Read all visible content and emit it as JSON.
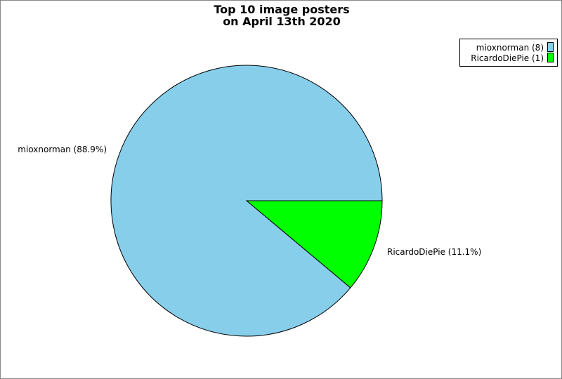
{
  "chart_data": {
    "type": "pie",
    "title": [
      "Top 10 image posters",
      "on April 13th 2020"
    ],
    "slices": [
      {
        "label": "mioxnorman",
        "value": 8,
        "percent": "88.9%",
        "color": "#87ceeb",
        "slice_label": "mioxnorman (88.9%)",
        "legend_label": "mioxnorman (8)"
      },
      {
        "label": "RicardoDiePie",
        "value": 1,
        "percent": "11.1%",
        "color": "#00ff00",
        "slice_label": "RicardoDiePie (11.1%)",
        "legend_label": "RicardoDiePie (1)"
      }
    ],
    "legend_position": "top-right"
  }
}
